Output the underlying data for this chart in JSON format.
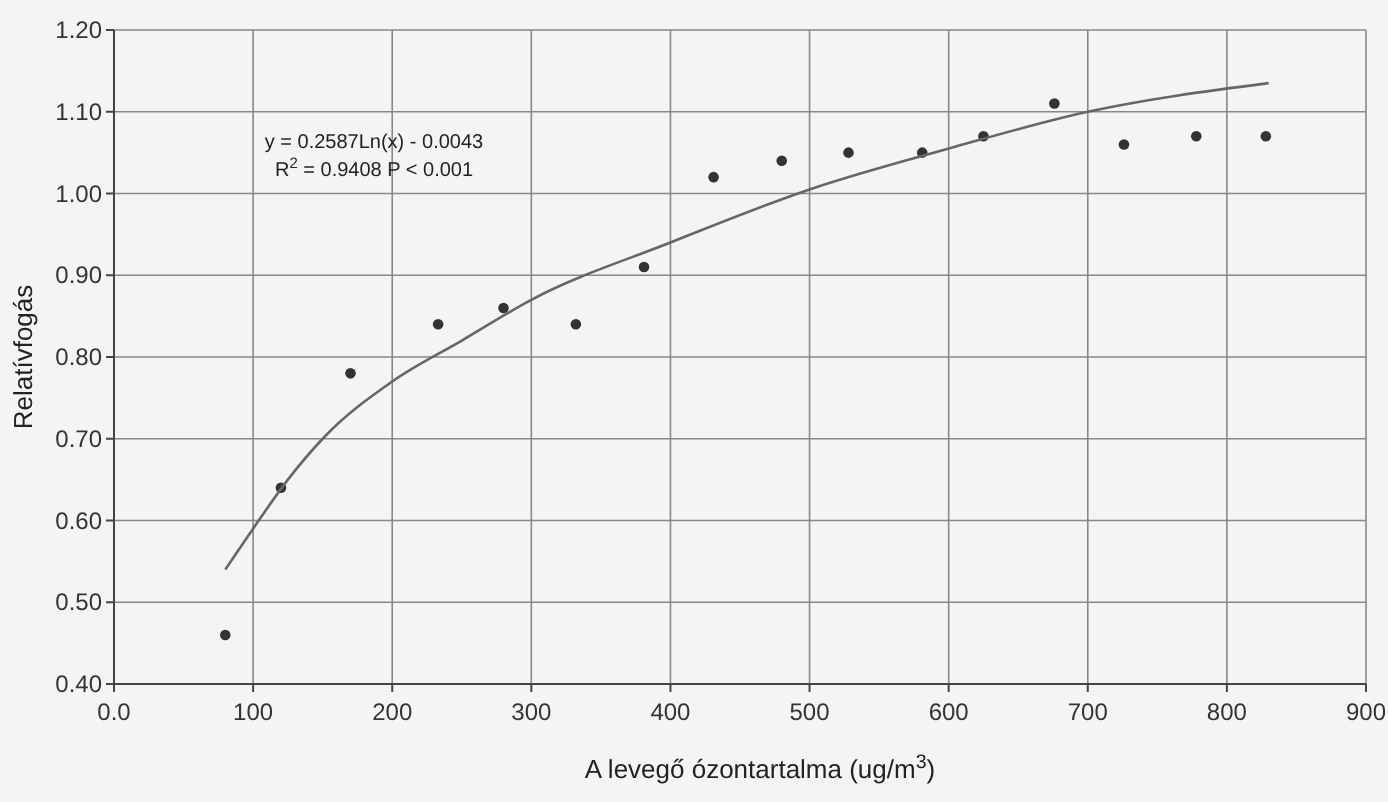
{
  "chart_data": {
    "type": "scatter",
    "xlabel": "A levegő ózontartalma (ug/m$^{3}$)",
    "ylabel": "Relatívfogás",
    "annotations": [
      "y = 0.2587Ln(x) - 0.0043",
      "R$^{2}$ = 0.9408 P < 0.001"
    ],
    "xlim": [
      0,
      900
    ],
    "xticks": [
      {
        "value": 0,
        "label": "0.0"
      },
      100,
      200,
      300,
      400,
      500,
      600,
      700,
      800,
      900
    ],
    "ylim": [
      0.4,
      1.2
    ],
    "yticks": [
      {
        "value": 0.4,
        "label": "0.40"
      },
      {
        "value": 0.5,
        "label": "0.50"
      },
      {
        "value": 0.6,
        "label": "0.60"
      },
      {
        "value": 0.7,
        "label": "0.70"
      },
      {
        "value": 0.8,
        "label": "0.80"
      },
      {
        "value": 0.9,
        "label": "0.90"
      },
      {
        "value": 1.0,
        "label": "1.00"
      },
      {
        "value": 1.1,
        "label": "1.10"
      },
      {
        "value": 1.2,
        "label": "1.20"
      }
    ],
    "grid": true,
    "series": [
      {
        "color": "#333333",
        "marker": "circle",
        "x": [
          80,
          120,
          170,
          233,
          280,
          332,
          381,
          431,
          480,
          528,
          581,
          625,
          676,
          726,
          778,
          828
        ],
        "values": [
          0.46,
          0.64,
          0.78,
          0.84,
          0.86,
          0.84,
          0.91,
          1.02,
          1.04,
          1.05,
          1.05,
          1.07,
          1.11,
          1.06,
          1.07,
          1.07
        ]
      },
      {
        "type": "line",
        "color": "#666666",
        "marker": "none",
        "x": [
          80,
          100,
          125,
          150,
          200,
          250,
          300,
          400,
          500,
          600,
          700,
          830
        ],
        "values": [
          0.54,
          0.59,
          0.65,
          0.7,
          0.77,
          0.82,
          0.87,
          0.94,
          1.005,
          1.055,
          1.1,
          1.135
        ]
      }
    ]
  }
}
